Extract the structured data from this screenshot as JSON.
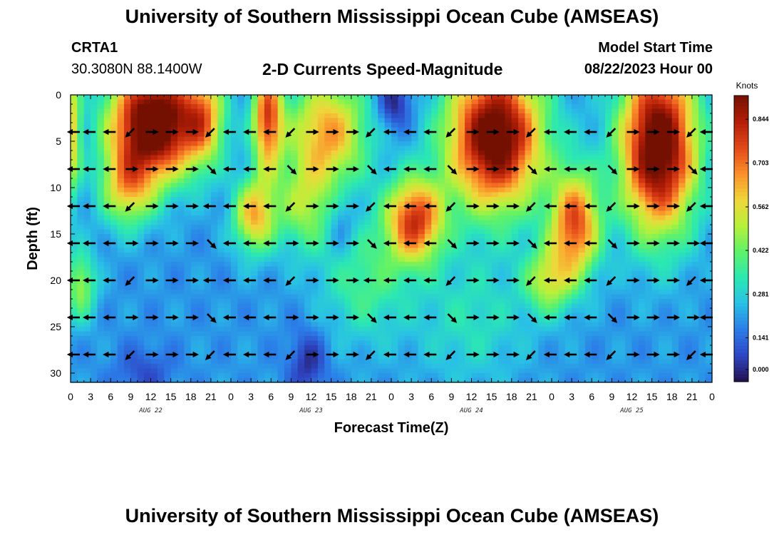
{
  "header": {
    "title": "University of Southern Mississippi Ocean Cube (AMSEAS)",
    "station": "CRTA1",
    "coords": "30.3080N  88.1400W",
    "subtitle": "2-D Currents Speed-Magnitude",
    "model_start_label": "Model Start Time",
    "model_start_value": "08/22/2023 Hour 00"
  },
  "footer": {
    "title": "University of Southern Mississippi Ocean Cube (AMSEAS)"
  },
  "chart_data": {
    "type": "heatmap",
    "title": "2-D Currents Speed-Magnitude",
    "xlabel": "Forecast Time(Z)",
    "ylabel": "Depth (ft)",
    "xlim": [
      0,
      96
    ],
    "ylim": [
      0,
      31
    ],
    "y_inverted": true,
    "x_tick_labels": [
      "0",
      "3",
      "6",
      "9",
      "12",
      "15",
      "18",
      "21",
      "0",
      "3",
      "6",
      "9",
      "12",
      "15",
      "18",
      "21",
      "0",
      "3",
      "6",
      "9",
      "12",
      "15",
      "18",
      "21",
      "0",
      "3",
      "6",
      "9",
      "12",
      "15",
      "18",
      "21",
      "0"
    ],
    "y_ticks": [
      0,
      5,
      10,
      15,
      20,
      25,
      30
    ],
    "day_labels": [
      {
        "label": "AUG 22",
        "hour": 12
      },
      {
        "label": "AUG 23",
        "hour": 36
      },
      {
        "label": "AUG 24",
        "hour": 60
      },
      {
        "label": "AUG 25",
        "hour": 84
      }
    ],
    "colorbar": {
      "unit": "Knots",
      "min": 0.0,
      "max": 0.92,
      "ticks": [
        "0.844",
        "0.703",
        "0.562",
        "0.422",
        "0.281",
        "0.141",
        "0.000"
      ],
      "tick_values": [
        0.844,
        0.703,
        0.562,
        0.422,
        0.281,
        0.141,
        0.0
      ],
      "colormap": [
        "#23104e",
        "#2e46c4",
        "#2b7de8",
        "#29c0e6",
        "#2be8b2",
        "#5ff268",
        "#b8f03a",
        "#f0d63a",
        "#fb8e29",
        "#e3481a",
        "#b31e06",
        "#741002"
      ]
    },
    "arrow_depths": [
      4,
      8,
      12,
      16,
      20,
      24,
      28
    ],
    "arrow_times": [
      0,
      3,
      6,
      9,
      12,
      15,
      18,
      21,
      24,
      27,
      30,
      33,
      36,
      39,
      42,
      45,
      48,
      51,
      54,
      57,
      60,
      63,
      66,
      69,
      72,
      75,
      78,
      81,
      84,
      87,
      90,
      93,
      96
    ],
    "features": [
      {
        "t": 12.5,
        "d": 3.0,
        "sigma_t": 4.6,
        "sigma_d": 4.2,
        "amp": 0.86
      },
      {
        "t": 8.5,
        "d": 10.0,
        "sigma_t": 2.8,
        "sigma_d": 3.0,
        "amp": 0.35
      },
      {
        "t": 20.0,
        "d": 2.5,
        "sigma_t": 2.2,
        "sigma_d": 3.5,
        "amp": 0.35
      },
      {
        "t": 29.5,
        "d": 2.5,
        "sigma_t": 1.6,
        "sigma_d": 4.0,
        "amp": 0.55
      },
      {
        "t": 38.5,
        "d": 4.0,
        "sigma_t": 4.2,
        "sigma_d": 4.2,
        "amp": 0.45
      },
      {
        "t": 27.5,
        "d": 13.0,
        "sigma_t": 2.2,
        "sigma_d": 2.8,
        "amp": 0.42
      },
      {
        "t": 35.0,
        "d": 12.0,
        "sigma_t": 3.0,
        "sigma_d": 3.5,
        "amp": 0.25
      },
      {
        "t": 51.5,
        "d": 13.5,
        "sigma_t": 3.0,
        "sigma_d": 3.2,
        "amp": 0.58
      },
      {
        "t": 63.5,
        "d": 4.5,
        "sigma_t": 5.0,
        "sigma_d": 5.5,
        "amp": 0.8
      },
      {
        "t": 75.5,
        "d": 14.0,
        "sigma_t": 2.6,
        "sigma_d": 4.0,
        "amp": 0.55
      },
      {
        "t": 71.5,
        "d": 20.0,
        "sigma_t": 2.5,
        "sigma_d": 2.5,
        "amp": 0.3
      },
      {
        "t": 88.0,
        "d": 5.5,
        "sigma_t": 4.0,
        "sigma_d": 6.5,
        "amp": 0.82
      },
      {
        "t": 1.5,
        "d": 20.5,
        "sigma_t": 1.6,
        "sigma_d": 2.6,
        "amp": 0.28
      },
      {
        "t": 0.3,
        "d": 4.0,
        "sigma_t": 0.9,
        "sigma_d": 5.0,
        "amp": 0.35
      },
      {
        "t": 44.0,
        "d": 20.0,
        "sigma_t": 4.5,
        "sigma_d": 4.5,
        "amp": 0.18
      },
      {
        "t": 60.0,
        "d": 24.0,
        "sigma_t": 6.0,
        "sigma_d": 5.0,
        "amp": 0.12
      },
      {
        "t": 48.5,
        "d": 1.0,
        "sigma_t": 1.8,
        "sigma_d": 2.0,
        "amp": -0.18
      },
      {
        "t": 35.5,
        "d": 29.0,
        "sigma_t": 2.0,
        "sigma_d": 2.5,
        "amp": -0.15
      },
      {
        "t": 11.0,
        "d": 30.0,
        "sigma_t": 3.0,
        "sigma_d": 2.0,
        "amp": -0.1
      },
      {
        "t": 40.5,
        "d": 14.0,
        "sigma_t": 1.5,
        "sigma_d": 2.5,
        "amp": -0.1
      }
    ],
    "base_speed": 0.2
  }
}
